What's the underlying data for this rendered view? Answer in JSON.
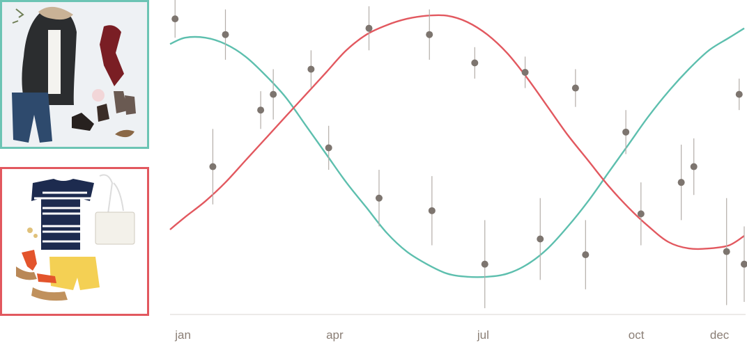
{
  "panels": [
    {
      "season": "winter",
      "border_color": "#6cc4b4",
      "icon": "winter-outfit-icon"
    },
    {
      "season": "summer",
      "border_color": "#e2585f",
      "icon": "summer-outfit-icon"
    }
  ],
  "chart_data": {
    "type": "line",
    "x_ticks": [
      "jan",
      "apr",
      "jul",
      "oct",
      "dec"
    ],
    "x_tick_positions": [
      1,
      4,
      7,
      10,
      12
    ],
    "xlim": [
      0.9,
      12.3
    ],
    "ylim": [
      0,
      100
    ],
    "grid": false,
    "legend": "none",
    "series": [
      {
        "color": "#5dbfae",
        "x": [
          0.9,
          1.2,
          1.6,
          2,
          2.4,
          2.8,
          3.2,
          3.6,
          4,
          4.4,
          4.8,
          5.2,
          5.6,
          6,
          6.4,
          6.8,
          7.2,
          7.6,
          8,
          8.4,
          8.8,
          9.2,
          9.6,
          10,
          10.4,
          10.8,
          11.2,
          11.6,
          12,
          12.3
        ],
        "y": [
          86,
          88,
          88,
          86,
          82,
          76,
          69,
          60,
          51,
          42,
          34,
          26,
          20,
          16,
          13,
          12,
          12,
          13,
          16,
          21,
          28,
          36,
          45,
          54,
          63,
          71,
          78,
          84,
          88,
          91
        ]
      },
      {
        "color": "#e2585f",
        "x": [
          0.9,
          1.2,
          1.6,
          2,
          2.4,
          2.8,
          3.2,
          3.6,
          4,
          4.4,
          4.8,
          5.2,
          5.6,
          6,
          6.4,
          6.8,
          7.2,
          7.6,
          8,
          8.4,
          8.8,
          9.2,
          9.6,
          10,
          10.4,
          10.8,
          11.2,
          11.6,
          12,
          12.3
        ],
        "y": [
          27,
          31,
          36,
          42,
          49,
          56,
          63,
          70,
          77,
          84,
          89,
          92,
          94,
          95,
          95,
          93,
          89,
          83,
          75,
          66,
          57,
          49,
          41,
          34,
          28,
          23,
          21,
          21,
          22,
          25
        ]
      }
    ],
    "points": [
      {
        "x": 1.0,
        "y": 94,
        "err": 6
      },
      {
        "x": 1.75,
        "y": 47,
        "err": 12
      },
      {
        "x": 2.0,
        "y": 89,
        "err": 8
      },
      {
        "x": 2.7,
        "y": 65,
        "err": 6
      },
      {
        "x": 2.95,
        "y": 70,
        "err": 8
      },
      {
        "x": 3.7,
        "y": 78,
        "err": 6
      },
      {
        "x": 4.05,
        "y": 53,
        "err": 7
      },
      {
        "x": 4.85,
        "y": 91,
        "err": 7
      },
      {
        "x": 5.05,
        "y": 37,
        "err": 9
      },
      {
        "x": 6.05,
        "y": 89,
        "err": 8
      },
      {
        "x": 6.1,
        "y": 33,
        "err": 11
      },
      {
        "x": 6.95,
        "y": 80,
        "err": 5
      },
      {
        "x": 7.15,
        "y": 16,
        "err": 14
      },
      {
        "x": 7.95,
        "y": 77,
        "err": 5
      },
      {
        "x": 8.25,
        "y": 24,
        "err": 13
      },
      {
        "x": 8.95,
        "y": 72,
        "err": 6
      },
      {
        "x": 9.15,
        "y": 19,
        "err": 11
      },
      {
        "x": 9.95,
        "y": 58,
        "err": 7
      },
      {
        "x": 10.25,
        "y": 32,
        "err": 10
      },
      {
        "x": 11.05,
        "y": 42,
        "err": 12
      },
      {
        "x": 11.3,
        "y": 47,
        "err": 9
      },
      {
        "x": 11.95,
        "y": 20,
        "err": 17
      },
      {
        "x": 12.2,
        "y": 70,
        "err": 5
      },
      {
        "x": 12.3,
        "y": 16,
        "err": 12
      }
    ]
  }
}
